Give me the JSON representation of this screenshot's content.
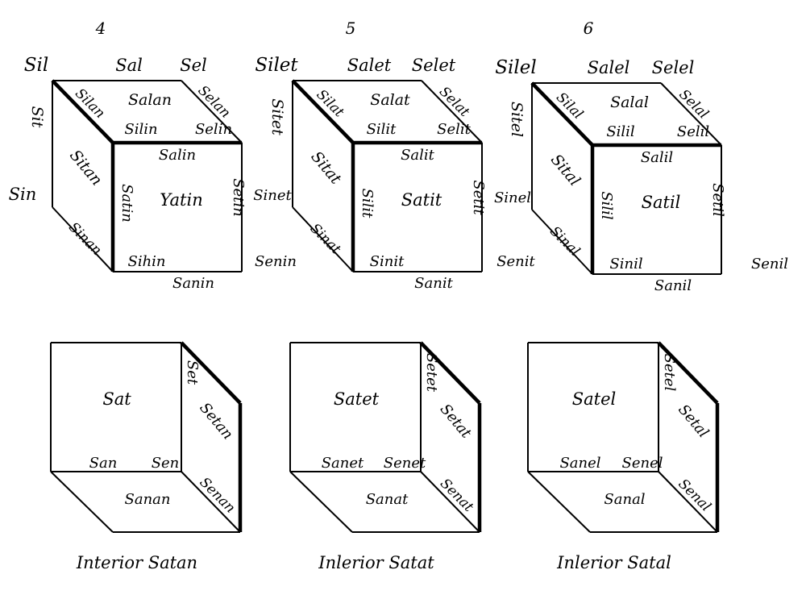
{
  "panels": [
    {
      "number": "4",
      "cube": {
        "Sil": "Sil",
        "Sal": "Sal",
        "Sel": "Sel",
        "Silan": "Silan",
        "Salan": "Salan",
        "Selan": "Selan",
        "Silin": "Silin",
        "Selin": "Selin",
        "Sit": "Sit",
        "Sitan": "Sitan",
        "Sin": "Sin",
        "Salin": "Salin",
        "Satin": "Satin",
        "Yatin": "Yatin",
        "Setin": "Setin",
        "Sinan": "Sinan",
        "Sihin": "Sihin",
        "Senin": "Senin",
        "Sanin": "Sanin"
      },
      "interior": {
        "front": "Sat",
        "edge": "Set",
        "side": "Setan",
        "bl": "San",
        "br": "Sen",
        "bottom": "Sanan",
        "diag": "Senan"
      },
      "caption": "Interior Satan"
    },
    {
      "number": "5",
      "cube": {
        "Sil": "Silet",
        "Sal": "Salet",
        "Sel": "Selet",
        "Silan": "Silat",
        "Salan": "Salat",
        "Selan": "Selat",
        "Silin": "Silit",
        "Selin": "Selit",
        "Sit": "Sitet",
        "Sitan": "Sitat",
        "Sin": "Sinet",
        "Salin": "Salit",
        "Satin": "Silit",
        "Yatin": "Satit",
        "Setin": "Setit",
        "Sinan": "Sinat",
        "Sihin": "Sinit",
        "Senin": "Senit",
        "Sanin": "Sanit"
      },
      "interior": {
        "front": "Satet",
        "edge": "Setet",
        "side": "Setat",
        "bl": "Sanet",
        "br": "Senet",
        "bottom": "Sanat",
        "diag": "Senat"
      },
      "caption": "Inlerior Satat"
    },
    {
      "number": "6",
      "cube": {
        "Sil": "Silel",
        "Sal": "Salel",
        "Sel": "Selel",
        "Silan": "Silal",
        "Salan": "Salal",
        "Selan": "Selal",
        "Silin": "Silil",
        "Selin": "Selil",
        "Sit": "Sitel",
        "Sitan": "Sital",
        "Sin": "Sinel",
        "Salin": "Salil",
        "Satin": "Silil",
        "Yatin": "Satil",
        "Setin": "Setil",
        "Sinan": "Sinal",
        "Sihin": "Sinil",
        "Senin": "Senil",
        "Sanin": "Sanil"
      },
      "interior": {
        "front": "Satel",
        "edge": "Setel",
        "side": "Setal",
        "bl": "Sanel",
        "br": "Senel",
        "bottom": "Sanal",
        "diag": "Senal"
      },
      "caption": "Inlerior Satal"
    }
  ]
}
